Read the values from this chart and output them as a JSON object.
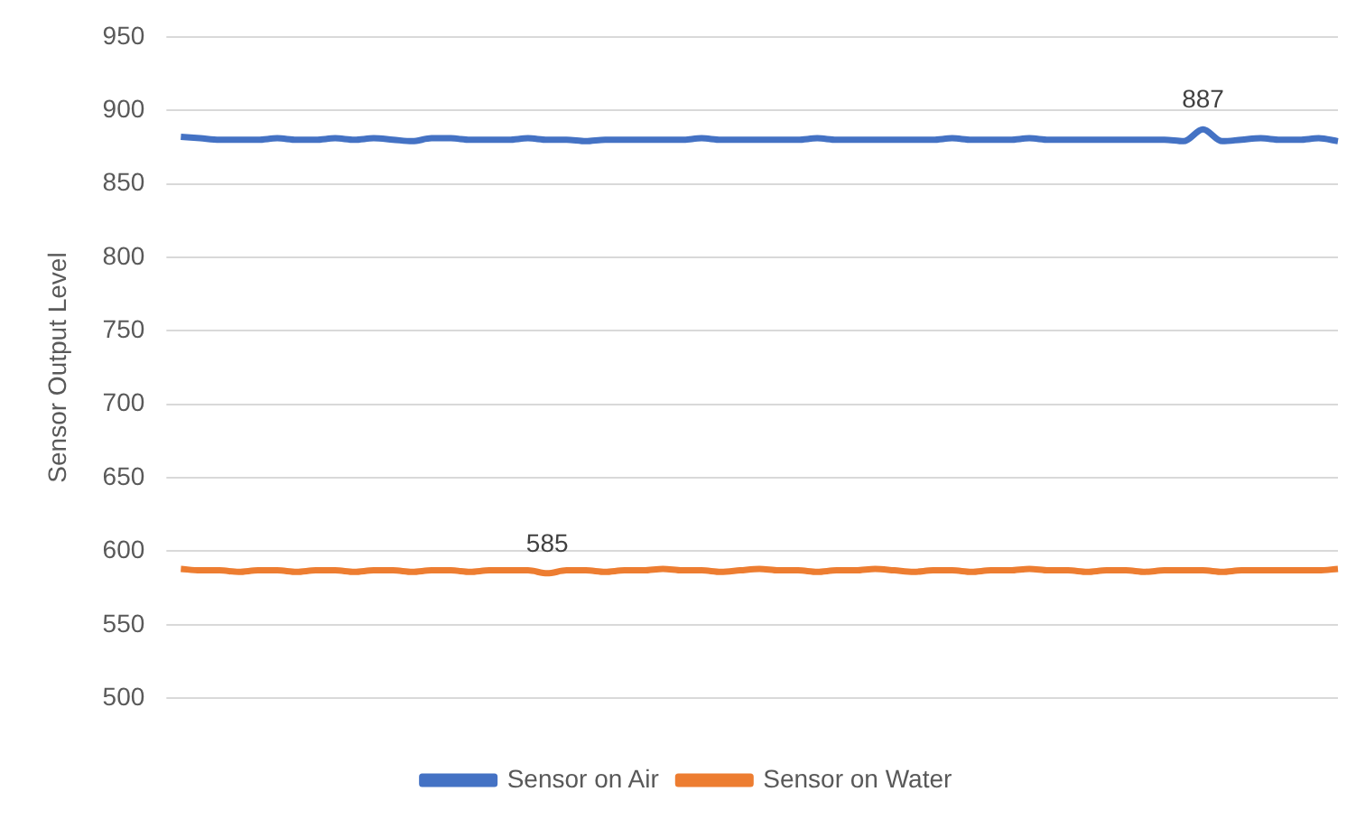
{
  "chart_data": {
    "type": "line",
    "ylabel": "Sensor Output Level",
    "categories": [
      null,
      null,
      null,
      null,
      null,
      null,
      null,
      null,
      null,
      null,
      null,
      null,
      null,
      null,
      null,
      null,
      null,
      null,
      null,
      null,
      null,
      null,
      null,
      null,
      null,
      null,
      null,
      null,
      null,
      null,
      null,
      null,
      null,
      null,
      null,
      null,
      null,
      null,
      null,
      null,
      null,
      null,
      null,
      null,
      null,
      null,
      null,
      null,
      null,
      null,
      null,
      null,
      null,
      null,
      null,
      null,
      null,
      null,
      null,
      null,
      null
    ],
    "series": [
      {
        "name": "Sensor on Air",
        "color": "#4472c4",
        "values": [
          882,
          881,
          880,
          880,
          880,
          881,
          880,
          880,
          881,
          880,
          881,
          880,
          879,
          881,
          881,
          880,
          880,
          880,
          881,
          880,
          880,
          879,
          880,
          880,
          880,
          880,
          880,
          881,
          880,
          880,
          880,
          880,
          880,
          881,
          880,
          880,
          880,
          880,
          880,
          880,
          881,
          880,
          880,
          880,
          881,
          880,
          880,
          880,
          880,
          880,
          880,
          880,
          879,
          887,
          879,
          880,
          881,
          880,
          880,
          881,
          879
        ],
        "value_labels": [
          null,
          null,
          null,
          null,
          null,
          null,
          null,
          null,
          null,
          null,
          null,
          null,
          null,
          null,
          null,
          null,
          null,
          null,
          null,
          null,
          null,
          null,
          null,
          null,
          null,
          null,
          null,
          null,
          null,
          null,
          null,
          null,
          null,
          null,
          null,
          null,
          null,
          null,
          null,
          null,
          null,
          null,
          null,
          null,
          null,
          null,
          null,
          null,
          null,
          null,
          null,
          null,
          null,
          "887",
          null,
          null,
          null,
          null,
          null,
          null,
          null
        ]
      },
      {
        "name": "Sensor on Water",
        "color": "#ed7d31",
        "values": [
          588,
          587,
          587,
          586,
          587,
          587,
          586,
          587,
          587,
          586,
          587,
          587,
          586,
          587,
          587,
          586,
          587,
          587,
          587,
          585,
          587,
          587,
          586,
          587,
          587,
          588,
          587,
          587,
          586,
          587,
          588,
          587,
          587,
          586,
          587,
          587,
          588,
          587,
          586,
          587,
          587,
          586,
          587,
          587,
          588,
          587,
          587,
          586,
          587,
          587,
          586,
          587,
          587,
          587,
          586,
          587,
          587,
          587,
          587,
          587,
          588
        ],
        "value_labels": [
          null,
          null,
          null,
          null,
          null,
          null,
          null,
          null,
          null,
          null,
          null,
          null,
          null,
          null,
          null,
          null,
          null,
          null,
          null,
          "585",
          null,
          null,
          null,
          null,
          null,
          null,
          null,
          null,
          null,
          null,
          null,
          null,
          null,
          null,
          null,
          null,
          null,
          null,
          null,
          null,
          null,
          null,
          null,
          null,
          null,
          null,
          null,
          null,
          null,
          null,
          null,
          null,
          null,
          null,
          null,
          null,
          null,
          null,
          null,
          null,
          null
        ]
      }
    ],
    "ylim": [
      500,
      950
    ],
    "yticks": [
      500,
      550,
      600,
      650,
      700,
      750,
      800,
      850,
      900,
      950
    ],
    "grid": "y",
    "legend": "bottom",
    "line_style": "solid"
  }
}
